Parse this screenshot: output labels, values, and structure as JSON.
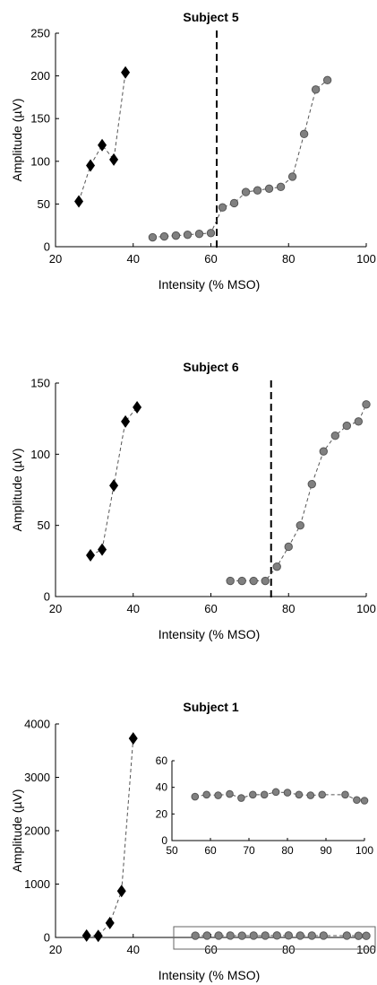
{
  "chart_data": [
    {
      "type": "line",
      "title": "Subject 5",
      "xlabel": "Intensity (% MSO)",
      "ylabel": "Amplitude (µV)",
      "xlim": [
        20,
        100
      ],
      "ylim": [
        0,
        250
      ],
      "xticks": [
        20,
        40,
        60,
        80,
        100
      ],
      "yticks": [
        0,
        50,
        100,
        150,
        200,
        250
      ],
      "threshold_x": 61.5,
      "series": [
        {
          "marker": "diamond",
          "x": [
            26,
            29,
            32,
            35,
            38
          ],
          "y": [
            53,
            95,
            119,
            102,
            204
          ]
        },
        {
          "marker": "circle",
          "x": [
            45,
            48,
            51,
            54,
            57,
            60,
            63,
            66,
            69,
            72,
            75,
            78,
            81,
            84,
            87,
            90
          ],
          "y": [
            11,
            12,
            13,
            14,
            15,
            16,
            46,
            51,
            64,
            66,
            68,
            70,
            82,
            132,
            184,
            195
          ]
        }
      ]
    },
    {
      "type": "line",
      "title": "Subject 6",
      "xlabel": "Intensity (% MSO)",
      "ylabel": "Amplitude (µV)",
      "xlim": [
        20,
        100
      ],
      "ylim": [
        0,
        150
      ],
      "xticks": [
        20,
        40,
        60,
        80,
        100
      ],
      "yticks": [
        0,
        50,
        100,
        150
      ],
      "threshold_x": 75.5,
      "series": [
        {
          "marker": "diamond",
          "x": [
            29,
            32,
            35,
            38,
            41
          ],
          "y": [
            29,
            33,
            78,
            123,
            133
          ]
        },
        {
          "marker": "circle",
          "x": [
            65,
            68,
            71,
            74,
            77,
            80,
            83,
            86,
            89,
            92,
            95,
            98,
            100
          ],
          "y": [
            11,
            11,
            11,
            11,
            21,
            35,
            50,
            79,
            102,
            113,
            120,
            123,
            135
          ]
        }
      ]
    },
    {
      "type": "line",
      "title": "Subject 1",
      "xlabel": "Intensity (% MSO)",
      "ylabel": "Amplitude (µV)",
      "xlim": [
        20,
        100
      ],
      "ylim": [
        0,
        4000
      ],
      "xticks": [
        20,
        40,
        60,
        80,
        100
      ],
      "yticks": [
        0,
        1000,
        2000,
        3000,
        4000
      ],
      "series": [
        {
          "marker": "diamond",
          "x": [
            28,
            31,
            34,
            37,
            40
          ],
          "y": [
            35,
            30,
            270,
            870,
            3730
          ]
        },
        {
          "marker": "circle",
          "x": [
            56,
            59,
            62,
            65,
            68,
            71,
            74,
            77,
            80,
            83,
            86,
            89,
            95,
            98,
            100
          ],
          "y": [
            33,
            34.5,
            34,
            35,
            32,
            34.5,
            34.5,
            36.5,
            36,
            34.5,
            34,
            34.5,
            34.5,
            30.5,
            30
          ]
        }
      ],
      "inset": {
        "xlim": [
          50,
          100
        ],
        "ylim": [
          0,
          60
        ],
        "xticks": [
          50,
          60,
          70,
          80,
          90,
          100
        ],
        "yticks": [
          0,
          20,
          40,
          60
        ],
        "marker": "circle",
        "x": [
          56,
          59,
          62,
          65,
          68,
          71,
          74,
          77,
          80,
          83,
          86,
          89,
          95,
          98,
          100
        ],
        "y": [
          33,
          34.5,
          34,
          35,
          32,
          34.5,
          34.5,
          36.5,
          36,
          34.5,
          34,
          34.5,
          34.5,
          30.5,
          30
        ]
      }
    }
  ]
}
